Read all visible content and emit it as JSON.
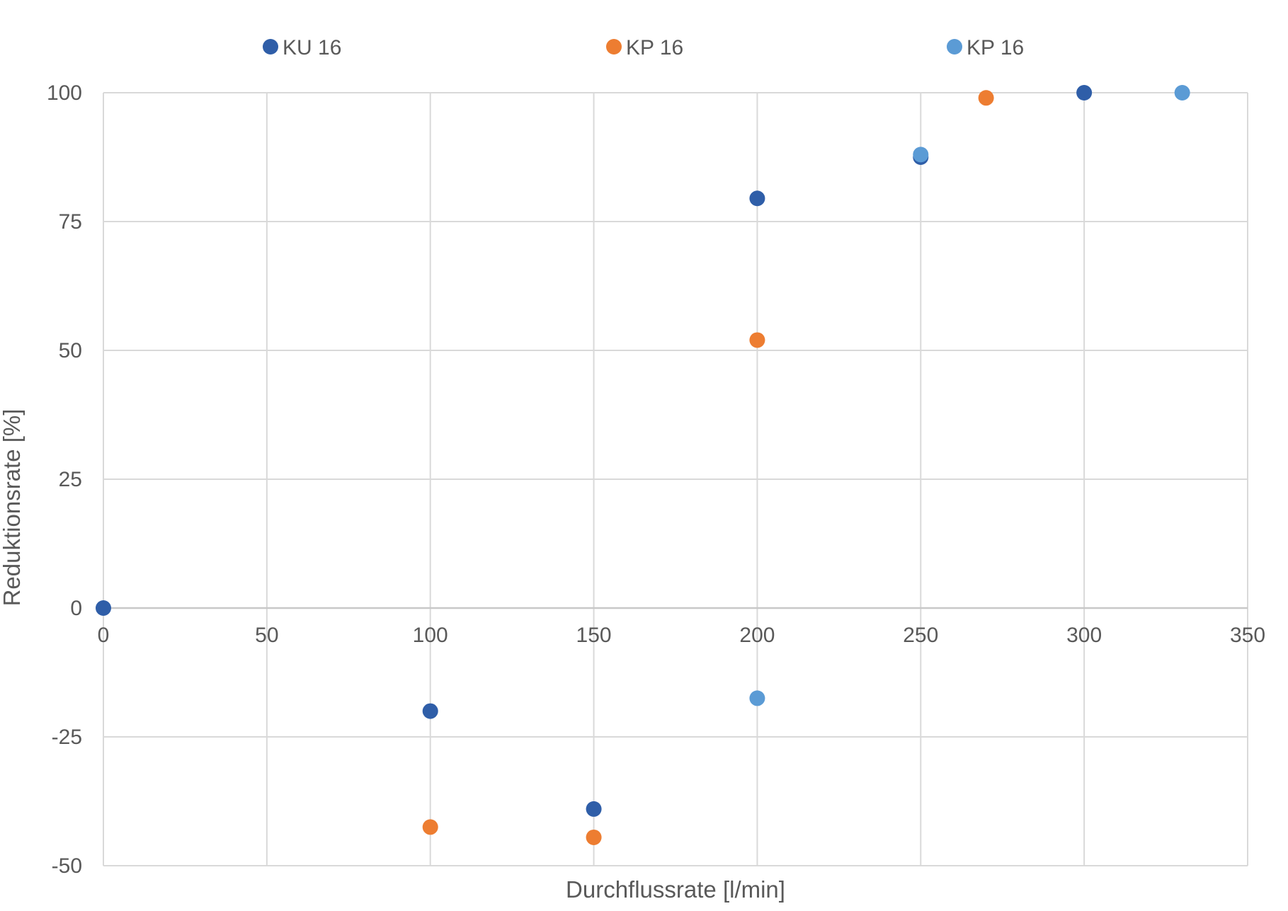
{
  "chart_data": {
    "type": "scatter",
    "title": "",
    "xlabel": "Durchflussrate [l/min]",
    "ylabel": "Reduktionsrate [%]",
    "xlim": [
      0,
      350
    ],
    "ylim": [
      -50,
      100
    ],
    "x_ticks": [
      "0",
      "50",
      "100",
      "150",
      "200",
      "250",
      "300",
      "350"
    ],
    "y_ticks": [
      "-50",
      "-25",
      "0",
      "25",
      "50",
      "75",
      "100"
    ],
    "grid": true,
    "legend_position": "top",
    "series": [
      {
        "name": "KU 16",
        "color": "#2f5ea8",
        "points": [
          {
            "x": 0,
            "y": 0
          },
          {
            "x": 100,
            "y": -20
          },
          {
            "x": 150,
            "y": -39
          },
          {
            "x": 200,
            "y": 79.5
          },
          {
            "x": 250,
            "y": 87.5
          },
          {
            "x": 300,
            "y": 100
          }
        ]
      },
      {
        "name": "KP 16",
        "color": "#ed7d31",
        "points": [
          {
            "x": 100,
            "y": -42.5
          },
          {
            "x": 150,
            "y": -44.5
          },
          {
            "x": 200,
            "y": 52
          },
          {
            "x": 270,
            "y": 99
          }
        ]
      },
      {
        "name": "KP 16",
        "color": "#5b9bd5",
        "points": [
          {
            "x": 200,
            "y": -17.5
          },
          {
            "x": 250,
            "y": 88
          },
          {
            "x": 330,
            "y": 100
          }
        ]
      }
    ]
  }
}
